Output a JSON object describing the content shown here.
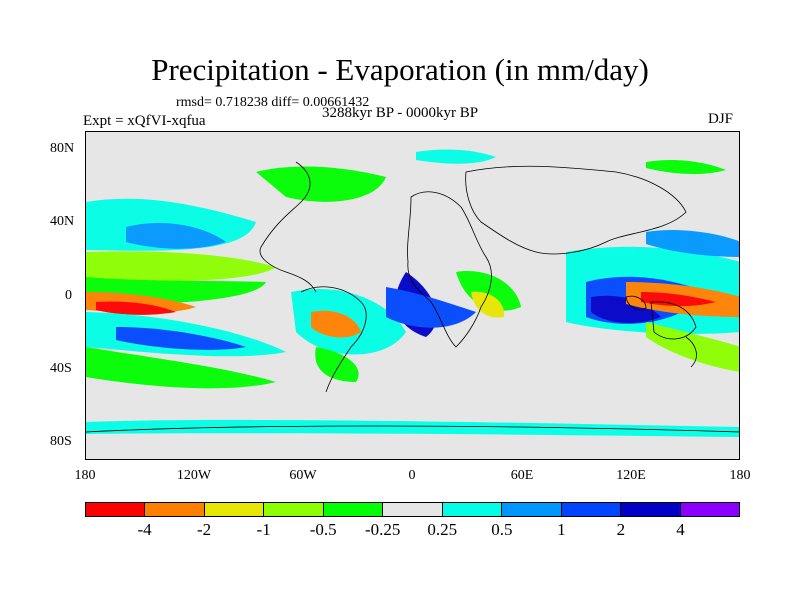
{
  "title": "Precipitation - Evaporation (in mm/day)",
  "stats": "rmsd= 0.718238 diff= 0.00661432",
  "experiment": "Expt = xQfVI-xqfua",
  "period": "3288kyr BP - 0000kyr BP",
  "season": "DJF",
  "axes": {
    "y_ticks": [
      "80N",
      "40N",
      "0",
      "40S",
      "80S"
    ],
    "x_ticks": [
      "180",
      "120W",
      "60W",
      "0",
      "60E",
      "120E",
      "180"
    ]
  },
  "colorbar": {
    "colors": [
      "#ff0000",
      "#ff8000",
      "#e6e600",
      "#8cff00",
      "#00ff00",
      "#e6e6e6",
      "#00ffe6",
      "#0096ff",
      "#0046ff",
      "#0000c8",
      "#8c00ff"
    ],
    "labels": [
      "-4",
      "-2",
      "-1",
      "-0.5",
      "-0.25",
      "0.25",
      "0.5",
      "1",
      "2",
      "4"
    ]
  }
}
